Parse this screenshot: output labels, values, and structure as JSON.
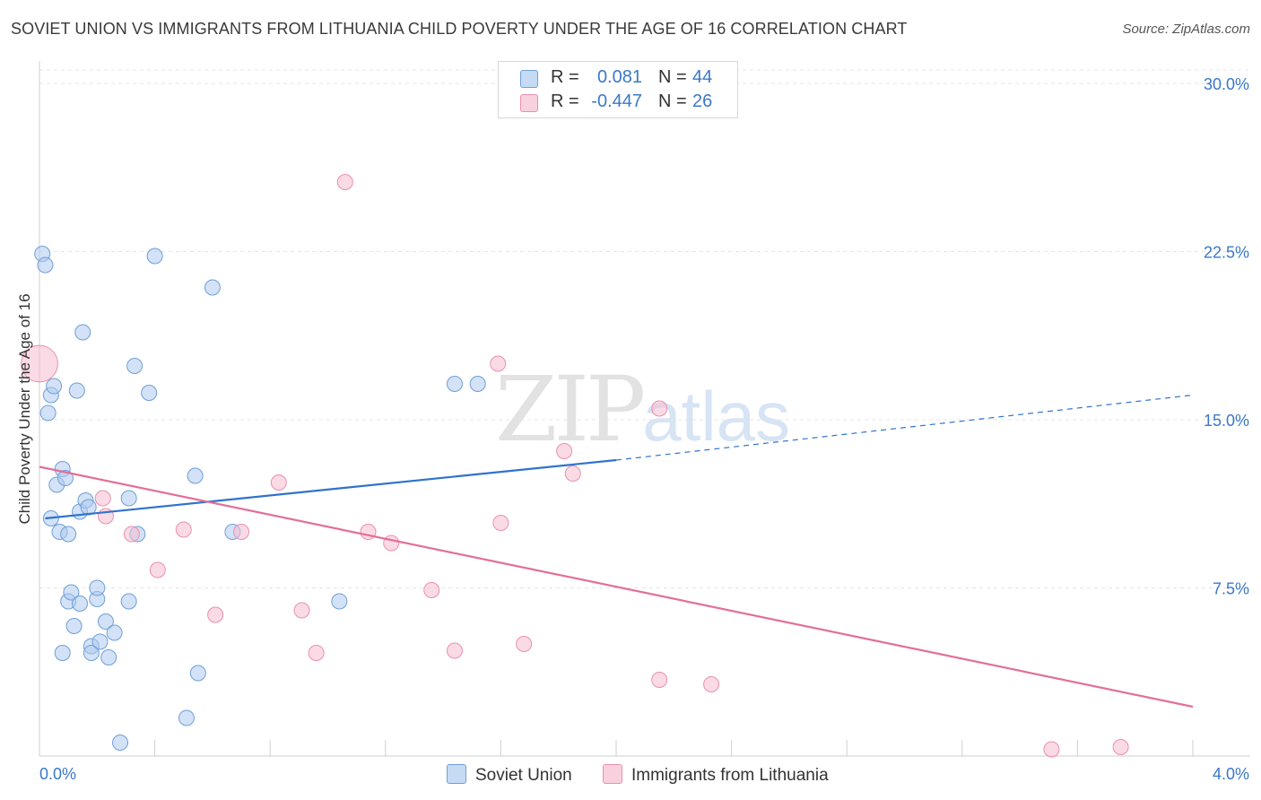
{
  "header": {
    "title": "SOVIET UNION VS IMMIGRANTS FROM LITHUANIA CHILD POVERTY UNDER THE AGE OF 16 CORRELATION CHART",
    "source": "Source: ZipAtlas.com"
  },
  "watermark": {
    "zip": "ZIP",
    "atlas": "atlas"
  },
  "legend_top": {
    "rows": [
      {
        "r_label": "R =",
        "r_value": "0.081",
        "n_label": "N =",
        "n_value": "44",
        "color": "#aecbef"
      },
      {
        "r_label": "R =",
        "r_value": "-0.447",
        "n_label": "N =",
        "n_value": "26",
        "color": "#f6bdd0"
      }
    ]
  },
  "chart_data": {
    "type": "scatter",
    "title": "SOVIET UNION VS IMMIGRANTS FROM LITHUANIA CHILD POVERTY UNDER THE AGE OF 16 CORRELATION CHART",
    "xlabel": "",
    "ylabel": "Child Poverty Under the Age of 16",
    "xlim": [
      0,
      4.2
    ],
    "ylim": [
      0,
      30.6
    ],
    "x_tick_labels": [
      "0.0%",
      "4.0%"
    ],
    "y_ticks": [
      7.5,
      15.0,
      22.5,
      30.0
    ],
    "y_tick_labels": [
      "7.5%",
      "15.0%",
      "22.5%",
      "30.0%"
    ],
    "grid": true,
    "legend_placement": "bottom",
    "series": [
      {
        "name": "Soviet Union",
        "color": "#aecbef",
        "stroke": "#6f9fd8",
        "line_color": "#2f73cc",
        "trend": {
          "x": [
            0.02,
            2.0
          ],
          "y": [
            10.6,
            13.2
          ],
          "dash_to": [
            4.2,
            16.1
          ]
        },
        "points": [
          [
            0.01,
            22.4
          ],
          [
            0.02,
            21.9
          ],
          [
            0.03,
            15.3
          ],
          [
            0.04,
            16.1
          ],
          [
            0.05,
            16.5
          ],
          [
            0.04,
            10.6
          ],
          [
            0.06,
            12.1
          ],
          [
            0.07,
            10.0
          ],
          [
            0.08,
            4.6
          ],
          [
            0.08,
            12.8
          ],
          [
            0.09,
            12.4
          ],
          [
            0.1,
            6.9
          ],
          [
            0.1,
            9.9
          ],
          [
            0.11,
            7.3
          ],
          [
            0.12,
            5.8
          ],
          [
            0.13,
            16.3
          ],
          [
            0.14,
            10.9
          ],
          [
            0.14,
            6.8
          ],
          [
            0.15,
            18.9
          ],
          [
            0.16,
            11.4
          ],
          [
            0.17,
            11.1
          ],
          [
            0.18,
            4.9
          ],
          [
            0.18,
            4.6
          ],
          [
            0.2,
            7.0
          ],
          [
            0.2,
            7.5
          ],
          [
            0.21,
            5.1
          ],
          [
            0.23,
            6.0
          ],
          [
            0.24,
            4.4
          ],
          [
            0.26,
            5.5
          ],
          [
            0.28,
            0.6
          ],
          [
            0.31,
            11.5
          ],
          [
            0.31,
            6.9
          ],
          [
            0.33,
            17.4
          ],
          [
            0.34,
            9.9
          ],
          [
            0.38,
            16.2
          ],
          [
            0.4,
            22.3
          ],
          [
            0.51,
            1.7
          ],
          [
            0.54,
            12.5
          ],
          [
            0.55,
            3.7
          ],
          [
            0.6,
            20.9
          ],
          [
            0.67,
            10.0
          ],
          [
            1.04,
            6.9
          ],
          [
            1.44,
            16.6
          ],
          [
            1.52,
            16.6
          ]
        ]
      },
      {
        "name": "Immigrants from Lithuania",
        "color": "#f6bdd0",
        "stroke": "#ea8fae",
        "line_color": "#e26f98",
        "trend": {
          "x": [
            0.0,
            4.0
          ],
          "y": [
            12.9,
            2.2
          ]
        },
        "points": [
          [
            0.0,
            17.5
          ],
          [
            0.22,
            11.5
          ],
          [
            0.23,
            10.7
          ],
          [
            0.32,
            9.9
          ],
          [
            0.41,
            8.3
          ],
          [
            0.5,
            10.1
          ],
          [
            0.61,
            6.3
          ],
          [
            0.7,
            10.0
          ],
          [
            0.83,
            12.2
          ],
          [
            0.91,
            6.5
          ],
          [
            0.96,
            4.6
          ],
          [
            1.06,
            25.6
          ],
          [
            1.14,
            10.0
          ],
          [
            1.22,
            9.5
          ],
          [
            1.36,
            7.4
          ],
          [
            1.44,
            4.7
          ],
          [
            1.59,
            17.5
          ],
          [
            1.6,
            10.4
          ],
          [
            1.68,
            5.0
          ],
          [
            1.82,
            13.6
          ],
          [
            1.85,
            12.6
          ],
          [
            2.15,
            3.4
          ],
          [
            2.15,
            15.5
          ],
          [
            2.33,
            3.2
          ],
          [
            3.51,
            0.3
          ],
          [
            3.75,
            0.4
          ]
        ],
        "sizes": [
          2.4,
          1,
          1,
          1,
          1,
          1,
          1,
          1,
          1,
          1,
          1,
          1,
          1,
          1,
          1,
          1,
          1,
          1,
          1,
          1,
          1,
          1,
          1,
          1,
          1,
          1
        ]
      }
    ]
  }
}
